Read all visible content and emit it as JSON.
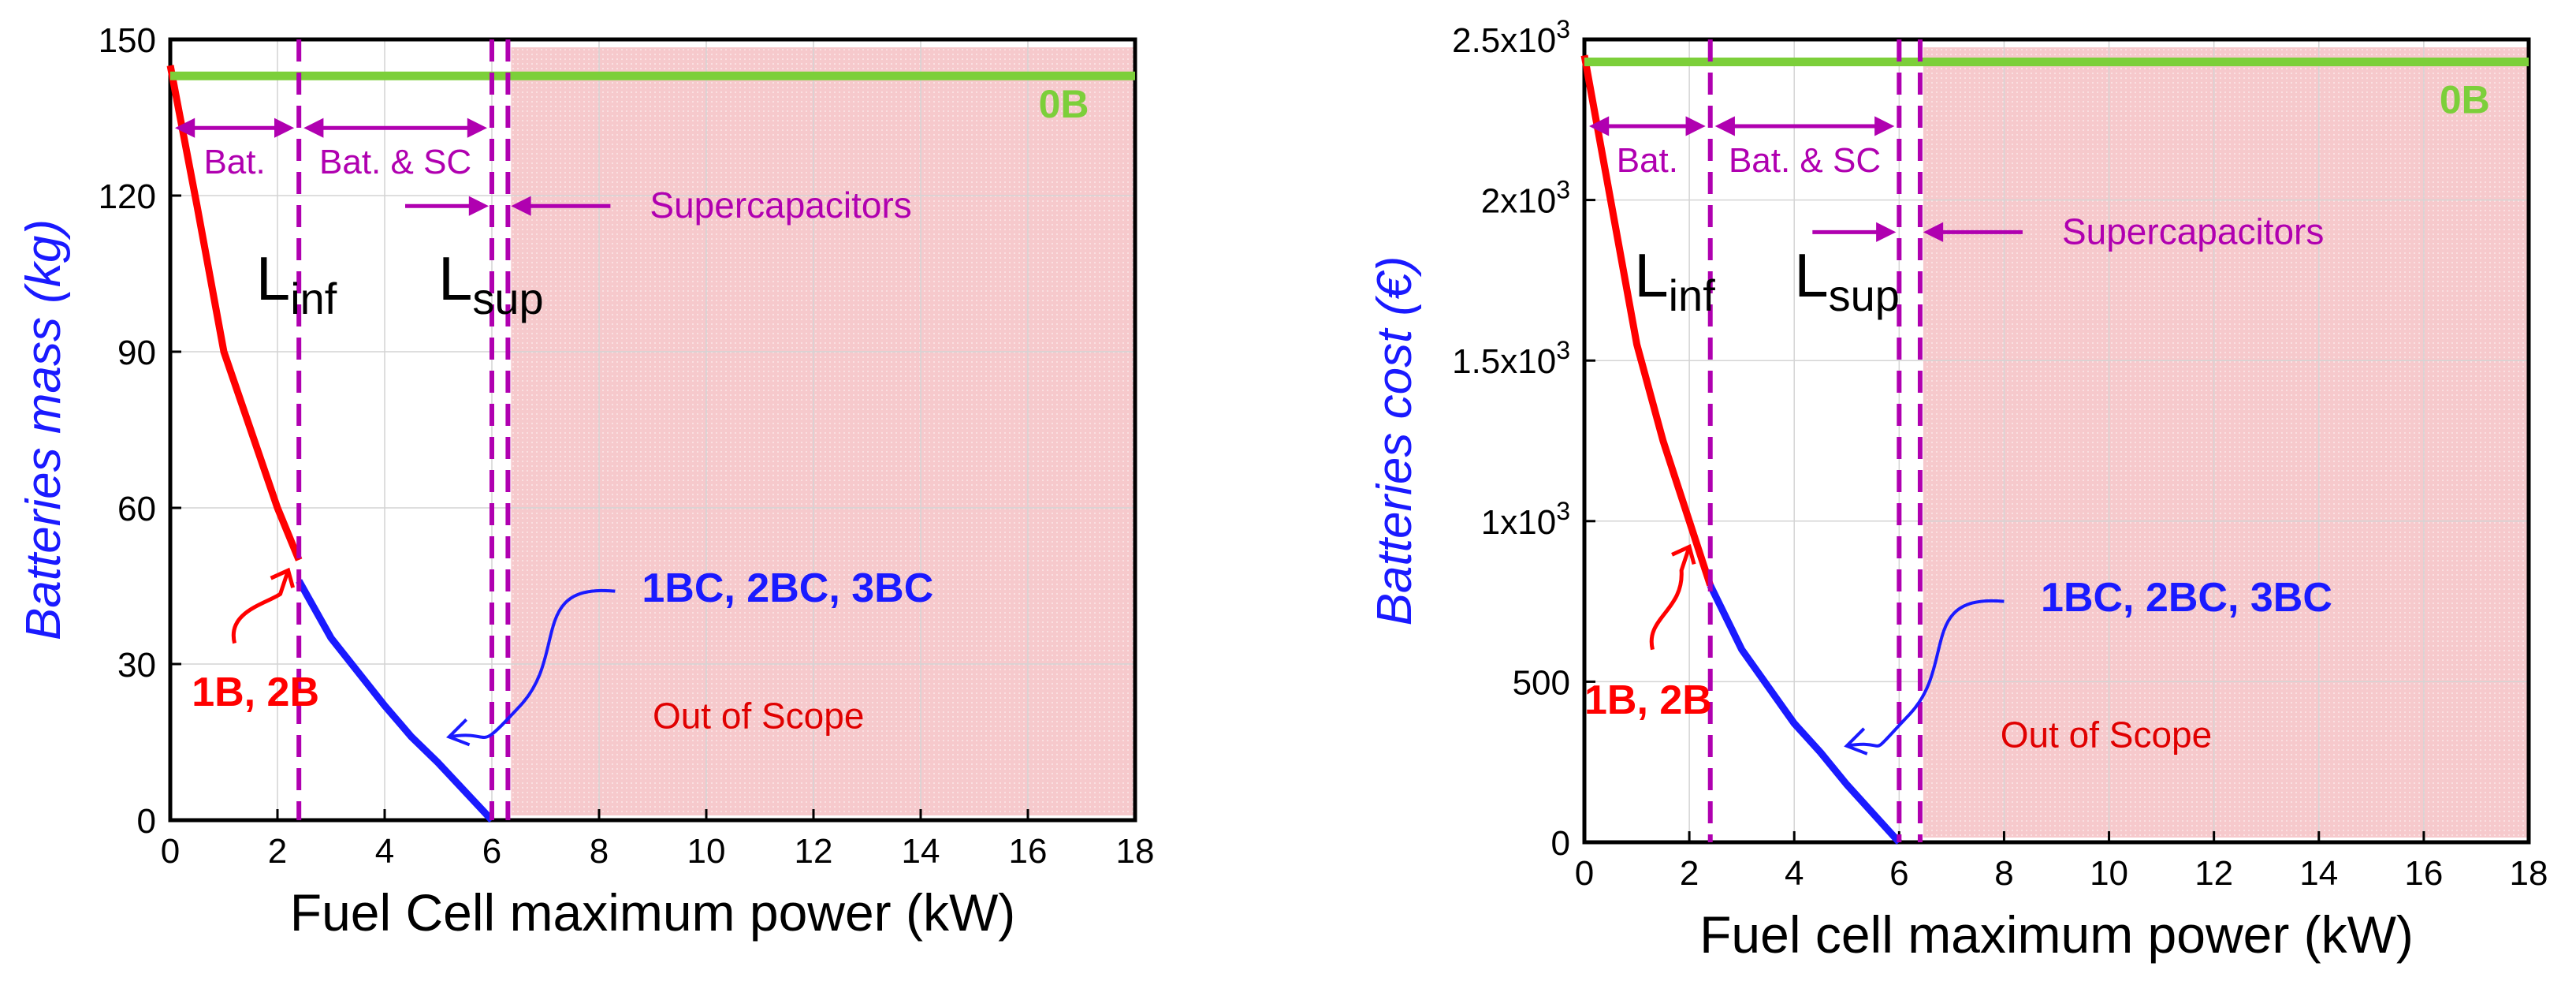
{
  "colors": {
    "red": "#ff0000",
    "blue": "#1a1aff",
    "green": "#7ccf3a",
    "magenta": "#b000b0",
    "scope_fill": "#f6c9cc",
    "scope_text": "#e00000",
    "grid": "#d4d4d4"
  },
  "chart_data": [
    {
      "type": "line",
      "xlabel": "Fuel Cell maximum power (kW)",
      "ylabel": "Batteries mass (kg)",
      "xlim": [
        0,
        18
      ],
      "ylim": [
        0,
        150
      ],
      "xticks": [
        0,
        2,
        4,
        6,
        8,
        10,
        12,
        14,
        16,
        18
      ],
      "yticks": [
        0,
        30,
        60,
        90,
        120,
        150
      ],
      "ytick_labels": [
        "0",
        "30",
        "60",
        "90",
        "120",
        "150"
      ],
      "series": [
        {
          "name": "1B, 2B",
          "color": "red",
          "x": [
            0,
            0.5,
            1,
            1.5,
            2,
            2.4
          ],
          "y": [
            145,
            118,
            90,
            75,
            60,
            50
          ]
        },
        {
          "name": "1BC, 2BC, 3BC",
          "color": "blue",
          "x": [
            2.4,
            3,
            4,
            4.5,
            5,
            6
          ],
          "y": [
            46,
            35,
            22,
            16,
            11,
            0
          ]
        },
        {
          "name": "0B",
          "color": "green",
          "x": [
            0,
            18
          ],
          "y": [
            143,
            143
          ]
        }
      ],
      "vlines": [
        {
          "x": 2.4,
          "label": "L",
          "sub": "inf"
        },
        {
          "x": 6.0,
          "label": "L",
          "sub": "sup"
        },
        {
          "x": 6.3,
          "label": "",
          "sub": ""
        }
      ],
      "out_of_scope": {
        "from": 6.3,
        "to": 18,
        "label": "Out of Scope"
      },
      "regions": [
        {
          "from": 0,
          "to": 2.4,
          "label": "Bat."
        },
        {
          "from": 2.4,
          "to": 6.0,
          "label": "Bat. & SC"
        }
      ],
      "region_y": 133,
      "supercap": {
        "label": "Supercapacitors",
        "y": 118
      },
      "series_labels": {
        "zero_b": {
          "text": "0B",
          "x": 16.2,
          "y": 135
        },
        "one_b": {
          "text": "1B, 2B",
          "x": 0.4,
          "y": 22
        },
        "one_bc": {
          "text": "1BC, 2BC, 3BC",
          "x": 8.8,
          "y": 42
        }
      },
      "pointer_red": {
        "from": [
          1.2,
          34
        ],
        "to": [
          2.2,
          48
        ]
      },
      "pointer_blue": {
        "from": [
          8.3,
          44
        ],
        "to": [
          5.2,
          16
        ]
      },
      "lines_pos": {
        "inf": {
          "x": 1.6,
          "y": 100
        },
        "sup": {
          "x": 5.0,
          "y": 100
        }
      }
    },
    {
      "type": "line",
      "xlabel": "Fuel cell maximum power (kW)",
      "ylabel": "Batteries cost (€)",
      "xlim": [
        0,
        18
      ],
      "ylim": [
        0,
        2500
      ],
      "xticks": [
        0,
        2,
        4,
        6,
        8,
        10,
        12,
        14,
        16,
        18
      ],
      "yticks": [
        0,
        500,
        1000,
        1500,
        2000,
        2500
      ],
      "ytick_labels": [
        "0",
        "500",
        "1x10",
        "1.5x10",
        "2x10",
        "2.5x10"
      ],
      "ytick_sup": [
        "",
        "",
        "3",
        "3",
        "3",
        "3"
      ],
      "series": [
        {
          "name": "1B, 2B",
          "color": "red",
          "x": [
            0,
            0.5,
            1,
            1.5,
            2,
            2.4
          ],
          "y": [
            2450,
            2000,
            1550,
            1250,
            1000,
            800
          ]
        },
        {
          "name": "1BC, 2BC, 3BC",
          "color": "blue",
          "x": [
            2.4,
            3,
            4,
            4.5,
            5,
            6
          ],
          "y": [
            800,
            600,
            370,
            280,
            180,
            0
          ]
        },
        {
          "name": "0B",
          "color": "green",
          "x": [
            0,
            18
          ],
          "y": [
            2430,
            2430
          ]
        }
      ],
      "vlines": [
        {
          "x": 2.4,
          "label": "L",
          "sub": "inf"
        },
        {
          "x": 6.0,
          "label": "L",
          "sub": "sup"
        },
        {
          "x": 6.4,
          "label": "",
          "sub": ""
        }
      ],
      "out_of_scope": {
        "from": 6.4,
        "to": 18,
        "label": "Out of Scope"
      },
      "regions": [
        {
          "from": 0,
          "to": 2.4,
          "label": "Bat."
        },
        {
          "from": 2.4,
          "to": 6.0,
          "label": "Bat. & SC"
        }
      ],
      "region_y": 2230,
      "supercap": {
        "label": "Supercapacitors",
        "y": 1900
      },
      "series_labels": {
        "zero_b": {
          "text": "0B",
          "x": 16.3,
          "y": 2270
        },
        "one_b": {
          "text": "1B, 2B",
          "x": 0.0,
          "y": 400
        },
        "one_bc": {
          "text": "1BC, 2BC, 3BC",
          "x": 8.7,
          "y": 720
        }
      },
      "pointer_red": {
        "from": [
          1.3,
          600
        ],
        "to": [
          2.0,
          920
        ]
      },
      "pointer_blue": {
        "from": [
          8.0,
          750
        ],
        "to": [
          5.0,
          300
        ]
      },
      "lines_pos": {
        "inf": {
          "x": 0.95,
          "y": 1700
        },
        "sup": {
          "x": 4.0,
          "y": 1700
        }
      }
    }
  ]
}
